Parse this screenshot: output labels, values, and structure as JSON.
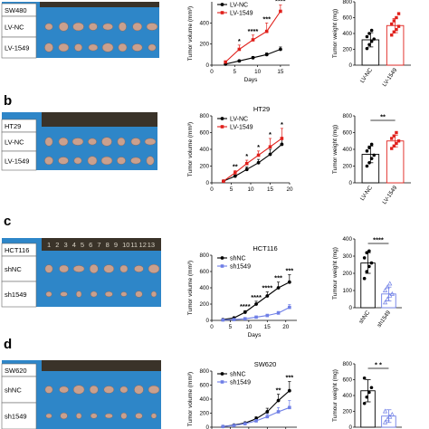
{
  "colors": {
    "photo_bg": "#2e86c8",
    "ruler": "#3a3329",
    "tumor": "#c9a08e",
    "black_series": "#000000",
    "red_series": "#e0201b",
    "blue_series": "#6f7fe6"
  },
  "panels": [
    {
      "letter": "",
      "photo": {
        "cell_label": "SW480",
        "row_labels": [
          "LV-NC",
          "LV-1549"
        ],
        "ruler_numbers": []
      },
      "sig_weight": ""
    },
    {
      "letter": "b",
      "photo": {
        "cell_label": "HT29",
        "row_labels": [
          "LV-NC",
          "LV-1549"
        ],
        "ruler_numbers": []
      },
      "sig_weight": "**"
    },
    {
      "letter": "c",
      "photo": {
        "cell_label": "HCT116",
        "row_labels": [
          "shNC",
          "sh1549"
        ],
        "ruler_numbers": [
          "1",
          "2",
          "3",
          "4",
          "5",
          "6",
          "7",
          "8",
          "9",
          "10",
          "11",
          "12",
          "13"
        ]
      },
      "sig_weight": "****"
    },
    {
      "letter": "d",
      "photo": {
        "cell_label": "SW620",
        "row_labels": [
          "shNC",
          "sh1549"
        ],
        "ruler_numbers": []
      },
      "sig_weight": "* *"
    }
  ],
  "chart_data": [
    {
      "type": "line",
      "title": "",
      "xlabel": "Days",
      "ylabel": "Tumor volume (mm³)",
      "xlim": [
        0,
        17
      ],
      "ylim": [
        0,
        600
      ],
      "xticks": [
        0,
        5,
        10,
        15
      ],
      "yticks": [
        0,
        200,
        400
      ],
      "x": [
        3,
        6,
        9,
        12,
        15
      ],
      "series": [
        {
          "name": "LV-NC",
          "values": [
            10,
            40,
            70,
            100,
            150
          ],
          "errors": [
            4,
            8,
            12,
            16,
            22
          ],
          "color": "#000000",
          "marker": "circle"
        },
        {
          "name": "LV-1549",
          "values": [
            30,
            150,
            240,
            320,
            510
          ],
          "errors": [
            8,
            40,
            45,
            80,
            60
          ],
          "color": "#e0201b",
          "marker": "square"
        }
      ],
      "legend_position": "top-left",
      "annotations": [
        {
          "x": 6,
          "text": "*"
        },
        {
          "x": 9,
          "text": "****"
        },
        {
          "x": 12,
          "text": "***"
        },
        {
          "x": 15,
          "text": "****"
        }
      ]
    },
    {
      "type": "bar",
      "title": "",
      "xlabel": "",
      "ylabel": "Tumor weight (mg)",
      "ylim": [
        0,
        800
      ],
      "yticks": [
        0,
        200,
        400,
        600,
        800
      ],
      "categories": [
        "LV-NC",
        "LV-1549"
      ],
      "values": [
        320,
        500
      ],
      "errors": [
        90,
        90
      ],
      "points": [
        [
          210,
          260,
          300,
          330,
          360,
          400,
          440
        ],
        [
          380,
          420,
          450,
          490,
          520,
          560,
          600,
          650
        ]
      ],
      "colors": [
        "#000000",
        "#e0201b"
      ],
      "annotations": []
    },
    {
      "type": "line",
      "title": "HT29",
      "xlabel": "",
      "ylabel": "Tumor volume (mm³)",
      "xlim": [
        0,
        20
      ],
      "ylim": [
        0,
        800
      ],
      "xticks": [
        0,
        5,
        10,
        15,
        20
      ],
      "yticks": [
        0,
        200,
        400,
        600,
        800
      ],
      "x": [
        3,
        6,
        9,
        12,
        15,
        18
      ],
      "series": [
        {
          "name": "LV-NC",
          "values": [
            20,
            80,
            160,
            240,
            340,
            460
          ],
          "errors": [
            5,
            15,
            30,
            40,
            60,
            80
          ],
          "color": "#000000",
          "marker": "circle"
        },
        {
          "name": "LV-1549",
          "values": [
            20,
            120,
            230,
            330,
            430,
            530
          ],
          "errors": [
            5,
            25,
            40,
            50,
            100,
            120
          ],
          "color": "#e0201b",
          "marker": "square"
        }
      ],
      "legend_position": "top-left",
      "annotations": [
        {
          "x": 6,
          "text": "**"
        },
        {
          "x": 9,
          "text": "*"
        },
        {
          "x": 12,
          "text": "*"
        },
        {
          "x": 15,
          "text": "*"
        },
        {
          "x": 18,
          "text": "*"
        }
      ]
    },
    {
      "type": "bar",
      "title": "",
      "xlabel": "",
      "ylabel": "Tumor weight (mg)",
      "ylim": [
        0,
        800
      ],
      "yticks": [
        0,
        200,
        400,
        600,
        800
      ],
      "categories": [
        "LV-NC",
        "LV-1549"
      ],
      "values": [
        340,
        500
      ],
      "errors": [
        100,
        70
      ],
      "points": [
        [
          200,
          240,
          290,
          330,
          380,
          420,
          460
        ],
        [
          410,
          440,
          470,
          500,
          530,
          560,
          600
        ]
      ],
      "colors": [
        "#000000",
        "#e0201b"
      ],
      "annotations": [
        "**"
      ]
    },
    {
      "type": "line",
      "title": "HCT116",
      "xlabel": "Days",
      "ylabel": "Tumor volume (mm³)",
      "xlim": [
        0,
        23
      ],
      "ylim": [
        0,
        800
      ],
      "xticks": [
        0,
        5,
        10,
        15,
        20
      ],
      "yticks": [
        0,
        200,
        400,
        600,
        800
      ],
      "x": [
        3,
        6,
        9,
        12,
        15,
        18,
        21
      ],
      "series": [
        {
          "name": "shNC",
          "values": [
            10,
            30,
            100,
            200,
            300,
            400,
            470
          ],
          "errors": [
            3,
            8,
            20,
            35,
            50,
            70,
            90
          ],
          "color": "#000000",
          "marker": "circle"
        },
        {
          "name": "sh1549",
          "values": [
            5,
            10,
            20,
            40,
            60,
            90,
            160
          ],
          "errors": [
            2,
            4,
            6,
            10,
            15,
            20,
            35
          ],
          "color": "#6f7fe6",
          "marker": "square"
        }
      ],
      "legend_position": "top-left",
      "annotations": [
        {
          "x": 9,
          "text": "****"
        },
        {
          "x": 12,
          "text": "****"
        },
        {
          "x": 15,
          "text": "****"
        },
        {
          "x": 18,
          "text": "***"
        },
        {
          "x": 21,
          "text": "***"
        }
      ]
    },
    {
      "type": "bar",
      "title": "",
      "xlabel": "",
      "ylabel": "Tumour weight (mg)",
      "ylim": [
        0,
        400
      ],
      "yticks": [
        0,
        100,
        200,
        300,
        400
      ],
      "categories": [
        "shNC",
        "sh1549"
      ],
      "values": [
        260,
        80
      ],
      "errors": [
        60,
        40
      ],
      "points": [
        [
          170,
          210,
          240,
          260,
          290,
          320,
          330
        ],
        [
          30,
          50,
          70,
          80,
          100,
          120,
          140
        ]
      ],
      "colors": [
        "#000000",
        "#6f7fe6"
      ],
      "annotations": [
        "****"
      ]
    },
    {
      "type": "line",
      "title": "SW620",
      "xlabel": "",
      "ylabel": "Tumor volume (mm³)",
      "xlim": [
        0,
        23
      ],
      "ylim": [
        0,
        800
      ],
      "xticks": [
        0,
        5,
        10,
        15,
        20
      ],
      "yticks": [
        0,
        200,
        400,
        600,
        800
      ],
      "x": [
        3,
        6,
        9,
        12,
        15,
        18,
        21
      ],
      "series": [
        {
          "name": "shNC",
          "values": [
            10,
            30,
            60,
            120,
            220,
            380,
            520
          ],
          "errors": [
            3,
            8,
            15,
            30,
            50,
            90,
            130
          ],
          "color": "#000000",
          "marker": "circle"
        },
        {
          "name": "sh1549",
          "values": [
            10,
            25,
            50,
            90,
            150,
            220,
            280
          ],
          "errors": [
            3,
            6,
            12,
            20,
            35,
            60,
            100
          ],
          "color": "#6f7fe6",
          "marker": "square"
        }
      ],
      "legend_position": "top-left",
      "annotations": [
        {
          "x": 18,
          "text": "**"
        },
        {
          "x": 21,
          "text": "***"
        }
      ]
    },
    {
      "type": "bar",
      "title": "",
      "xlabel": "",
      "ylabel": "Tumour weight (mg)",
      "ylim": [
        0,
        800
      ],
      "yticks": [
        0,
        200,
        400,
        600,
        800
      ],
      "categories": [
        "shNC",
        "sh1549"
      ],
      "values": [
        460,
        140
      ],
      "errors": [
        140,
        80
      ],
      "points": [
        [
          300,
          380,
          440,
          500,
          620
        ],
        [
          60,
          100,
          130,
          160,
          200
        ]
      ],
      "colors": [
        "#000000",
        "#6f7fe6"
      ],
      "annotations": [
        "* *"
      ]
    }
  ]
}
